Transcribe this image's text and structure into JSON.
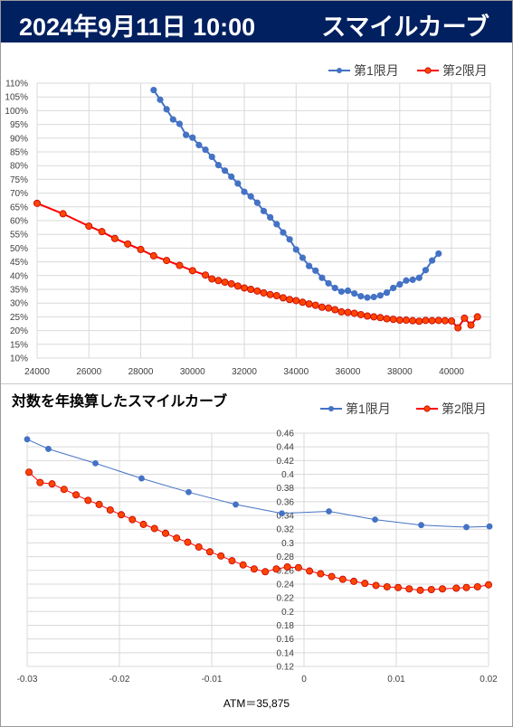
{
  "header": {
    "date": "2024年9月11日 10:00",
    "title": "スマイルカーブ"
  },
  "chart_title": "対数を年換算したスマイルカーブ",
  "atm_label": "ATM＝35,875",
  "colors": {
    "header_bg": "#002060",
    "series1": "#4472C4",
    "series2": "#FF0000",
    "series2_fill": "#FF4500",
    "grid": "#D9D9D9"
  },
  "chart_data": [
    {
      "type": "line",
      "xlim": [
        24000,
        41500
      ],
      "ylim": [
        0.1,
        1.1
      ],
      "x_ticks": [
        24000,
        26000,
        28000,
        30000,
        32000,
        34000,
        36000,
        38000,
        40000
      ],
      "x_tick_labels": [
        "24000",
        "26000",
        "28000",
        "30000",
        "32000",
        "34000",
        "36000",
        "38000",
        "40000"
      ],
      "y_ticks": [
        0.1,
        0.15,
        0.2,
        0.25,
        0.3,
        0.35,
        0.4,
        0.45,
        0.5,
        0.55,
        0.6,
        0.65,
        0.7,
        0.75,
        0.8,
        0.85,
        0.9,
        0.95,
        1.0,
        1.05,
        1.1
      ],
      "y_tick_labels": [
        "10%",
        "15%",
        "20%",
        "25%",
        "30%",
        "35%",
        "40%",
        "45%",
        "50%",
        "55%",
        "60%",
        "65%",
        "70%",
        "75%",
        "80%",
        "85%",
        "90%",
        "95%",
        "100%",
        "105%",
        "110%"
      ],
      "grid": true,
      "legend_position": "top-right",
      "series": [
        {
          "name": "第1限月",
          "x": [
            28500,
            28750,
            29000,
            29250,
            29500,
            29750,
            30000,
            30250,
            30500,
            30750,
            31000,
            31250,
            31500,
            31750,
            32000,
            32250,
            32500,
            32750,
            33000,
            33250,
            33500,
            33750,
            34000,
            34250,
            34500,
            34750,
            35000,
            35250,
            35500,
            35750,
            36000,
            36250,
            36500,
            36750,
            37000,
            37250,
            37500,
            37750,
            38000,
            38250,
            38500,
            38750,
            39000,
            39250,
            39500
          ],
          "y": [
            1.075,
            1.04,
            1.005,
            0.968,
            0.952,
            0.912,
            0.902,
            0.875,
            0.858,
            0.832,
            0.802,
            0.782,
            0.76,
            0.735,
            0.705,
            0.688,
            0.665,
            0.635,
            0.612,
            0.587,
            0.557,
            0.532,
            0.495,
            0.465,
            0.435,
            0.418,
            0.392,
            0.372,
            0.355,
            0.342,
            0.345,
            0.335,
            0.325,
            0.32,
            0.322,
            0.328,
            0.338,
            0.355,
            0.368,
            0.382,
            0.385,
            0.392,
            0.42,
            0.455,
            0.48
          ]
        },
        {
          "name": "第2限月",
          "x": [
            24000,
            25000,
            26000,
            26500,
            27000,
            27500,
            28000,
            28500,
            29000,
            29500,
            30000,
            30500,
            30750,
            31000,
            31250,
            31500,
            31750,
            32000,
            32250,
            32500,
            32750,
            33000,
            33250,
            33500,
            33750,
            34000,
            34250,
            34500,
            34750,
            35000,
            35250,
            35500,
            35750,
            36000,
            36250,
            36500,
            36750,
            37000,
            37250,
            37500,
            37750,
            38000,
            38250,
            38500,
            38750,
            39000,
            39250,
            39500,
            39750,
            40000,
            40250,
            40500,
            40750,
            41000
          ],
          "y": [
            0.663,
            0.625,
            0.58,
            0.56,
            0.535,
            0.515,
            0.495,
            0.472,
            0.455,
            0.437,
            0.418,
            0.402,
            0.388,
            0.382,
            0.376,
            0.37,
            0.362,
            0.355,
            0.35,
            0.344,
            0.337,
            0.331,
            0.327,
            0.319,
            0.313,
            0.309,
            0.303,
            0.297,
            0.292,
            0.285,
            0.282,
            0.276,
            0.268,
            0.266,
            0.263,
            0.258,
            0.253,
            0.25,
            0.247,
            0.243,
            0.241,
            0.238,
            0.238,
            0.236,
            0.234,
            0.237,
            0.236,
            0.237,
            0.236,
            0.235,
            0.21,
            0.245,
            0.22,
            0.25
          ]
        }
      ]
    },
    {
      "type": "line",
      "title": "対数を年換算したスマイルカーブ",
      "xlim": [
        -0.03,
        0.02
      ],
      "ylim": [
        0.12,
        0.46
      ],
      "x_ticks": [
        -0.03,
        -0.02,
        -0.01,
        0,
        0.01,
        0.02
      ],
      "x_tick_labels": [
        "-0.03",
        "-0.02",
        "-0.01",
        "0",
        "0.01",
        "0.02"
      ],
      "y_ticks": [
        0.12,
        0.14,
        0.16,
        0.18,
        0.2,
        0.22,
        0.24,
        0.26,
        0.28,
        0.3,
        0.32,
        0.34,
        0.36,
        0.38,
        0.4,
        0.42,
        0.44,
        0.46
      ],
      "y_tick_labels": [
        "0.12",
        "0.14",
        "0.16",
        "0.18",
        "0.2",
        "0.22",
        "0.24",
        "0.26",
        "0.28",
        "0.3",
        "0.32",
        "0.34",
        "0.36",
        "0.38",
        "0.4",
        "0.42",
        "0.44",
        "0.46"
      ],
      "grid": true,
      "legend_position": "top-right",
      "series": [
        {
          "name": "第1限月",
          "x": [
            -0.03,
            -0.0277,
            -0.0226,
            -0.0176,
            -0.0125,
            -0.0074,
            -0.0024,
            0.0027,
            0.0077,
            0.0127,
            0.0176,
            0.0201
          ],
          "y": [
            0.451,
            0.437,
            0.416,
            0.394,
            0.374,
            0.356,
            0.343,
            0.346,
            0.334,
            0.326,
            0.323,
            0.324
          ]
        },
        {
          "name": "第2限月",
          "x": [
            -0.0298,
            -0.0286,
            -0.0273,
            -0.026,
            -0.0247,
            -0.0234,
            -0.0222,
            -0.021,
            -0.0198,
            -0.0186,
            -0.0174,
            -0.0162,
            -0.015,
            -0.0138,
            -0.0126,
            -0.0114,
            -0.0102,
            -0.009,
            -0.0078,
            -0.0066,
            -0.0054,
            -0.0042,
            -0.003,
            -0.0018,
            -0.0006,
            0.0006,
            0.0018,
            0.003,
            0.0042,
            0.0054,
            0.0066,
            0.0078,
            0.009,
            0.0102,
            0.0114,
            0.0126,
            0.0138,
            0.015,
            0.0165,
            0.0176,
            0.0188,
            0.02
          ],
          "y": [
            0.403,
            0.388,
            0.386,
            0.378,
            0.37,
            0.362,
            0.356,
            0.348,
            0.341,
            0.334,
            0.327,
            0.321,
            0.314,
            0.307,
            0.301,
            0.294,
            0.287,
            0.281,
            0.274,
            0.268,
            0.262,
            0.258,
            0.262,
            0.265,
            0.264,
            0.259,
            0.255,
            0.251,
            0.247,
            0.244,
            0.241,
            0.238,
            0.236,
            0.235,
            0.233,
            0.231,
            0.232,
            0.233,
            0.234,
            0.235,
            0.236,
            0.239
          ]
        }
      ]
    }
  ]
}
